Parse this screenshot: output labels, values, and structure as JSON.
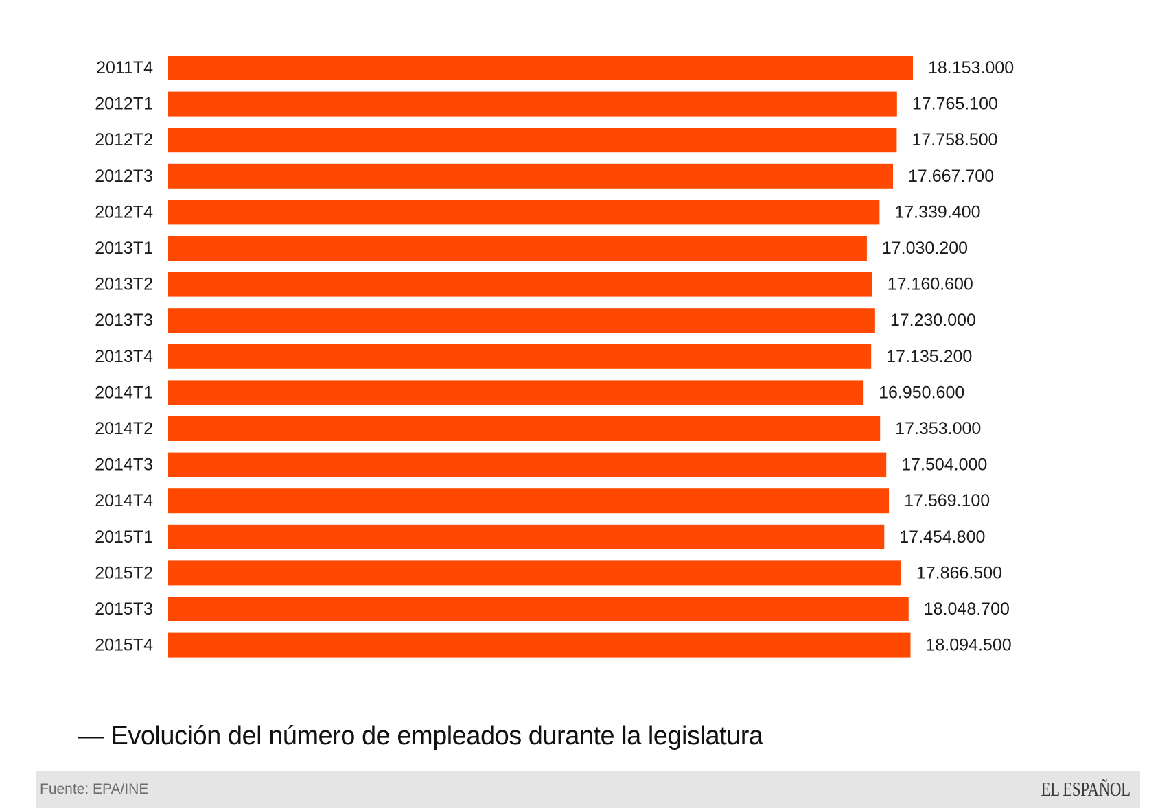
{
  "chart_data": {
    "type": "bar",
    "orientation": "horizontal",
    "categories": [
      "2011T4",
      "2012T1",
      "2012T2",
      "2012T3",
      "2012T4",
      "2013T1",
      "2013T2",
      "2013T3",
      "2013T4",
      "2014T1",
      "2014T2",
      "2014T3",
      "2014T4",
      "2015T1",
      "2015T2",
      "2015T3",
      "2015T4"
    ],
    "values": [
      18153000,
      17765100,
      17758500,
      17667700,
      17339400,
      17030200,
      17160600,
      17230000,
      17135200,
      16950600,
      17353000,
      17504000,
      17569100,
      17454800,
      17866500,
      18048700,
      18094500
    ],
    "value_labels": [
      "18.153.000",
      "17.765.100",
      "17.758.500",
      "17.667.700",
      "17.339.400",
      "17.030.200",
      "17.160.600",
      "17.230.000",
      "17.135.200",
      "16.950.600",
      "17.353.000",
      "17.504.000",
      "17.569.100",
      "17.454.800",
      "17.866.500",
      "18.048.700",
      "18.094.500"
    ],
    "xlim": [
      0,
      18153000
    ],
    "bar_color": "#ff4800",
    "grid": false,
    "legend": "none"
  },
  "caption": {
    "dash": "—",
    "text": "Evolución del número de empleados durante la legislatura"
  },
  "footer": {
    "source": "Fuente: EPA/INE",
    "logo": "EL ESPAÑOL"
  }
}
